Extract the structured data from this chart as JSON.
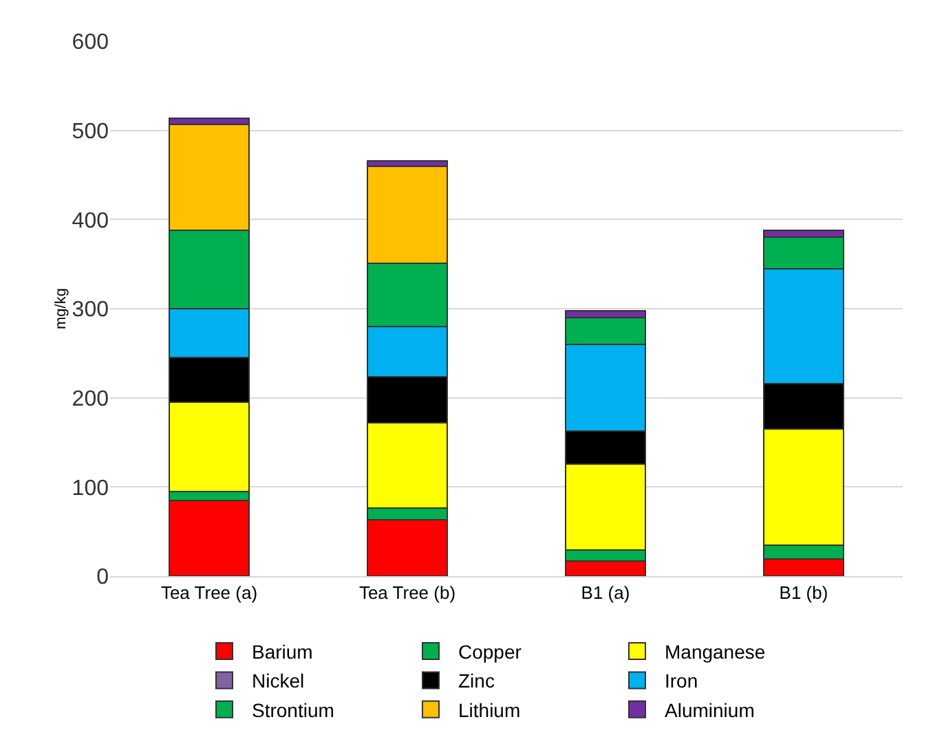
{
  "chart_data": {
    "type": "bar",
    "stacked": true,
    "ylabel": "mg/kg",
    "categories": [
      "Tea Tree (a)",
      "Tea Tree (b)",
      "B1 (a)",
      "B1 (b)"
    ],
    "ylim": [
      0,
      600
    ],
    "yticks": [
      0,
      100,
      200,
      300,
      400,
      500,
      600
    ],
    "grid": "y",
    "legend": "bottom",
    "series": [
      {
        "name": "Barium",
        "color": "#ff0000",
        "values": [
          85,
          63,
          17,
          19
        ]
      },
      {
        "name": "Copper",
        "color": "#00b050",
        "values": [
          10,
          13,
          12,
          16
        ]
      },
      {
        "name": "Manganese",
        "color": "#ffff00",
        "values": [
          100,
          96,
          97,
          130
        ]
      },
      {
        "name": "Nickel",
        "color": "#8064a2",
        "values": [
          0,
          0,
          0,
          0
        ]
      },
      {
        "name": "Zinc",
        "color": "#000000",
        "values": [
          50,
          52,
          37,
          51
        ]
      },
      {
        "name": "Iron",
        "color": "#00b0f0",
        "values": [
          55,
          56,
          97,
          129
        ]
      },
      {
        "name": "Strontium",
        "color": "#00b050",
        "values": [
          88,
          71,
          30,
          35
        ]
      },
      {
        "name": "Lithium",
        "color": "#ffc000",
        "values": [
          119,
          109,
          0,
          0
        ]
      },
      {
        "name": "Aluminium",
        "color": "#7030a0",
        "values": [
          7,
          6,
          8,
          8
        ]
      }
    ]
  }
}
